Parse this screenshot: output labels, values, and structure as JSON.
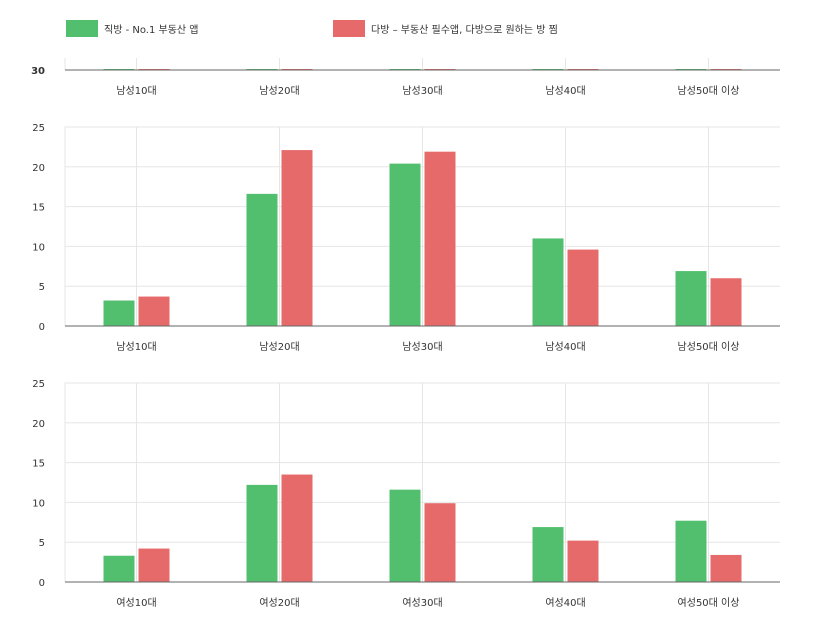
{
  "colors": {
    "series1": "#52bf6e",
    "series2": "#e66a6a",
    "grid": "#e6e6e6",
    "axis": "#666666",
    "text": "#333333"
  },
  "legend": [
    {
      "label": "직방 - No.1 부동산 앱"
    },
    {
      "label": "다방 – 부동산 필수앱, 다방으로 원하는 방 찜"
    }
  ],
  "chart_data": [
    {
      "type": "bar",
      "title": "",
      "categories": [
        "남성10대",
        "남성20대",
        "남성30대",
        "남성40대",
        "남성50대 이상"
      ],
      "yticks": [
        "30"
      ],
      "ylim": [
        30,
        40
      ],
      "series": [
        {
          "name": "직방 - No.1 부동산 앱",
          "values": [
            30,
            30.1,
            30.1,
            30,
            30
          ]
        },
        {
          "name": "다방 – 부동산 필수앱, 다방으로 원하는 방 찜",
          "values": [
            30,
            30.1,
            30.1,
            30,
            30
          ]
        }
      ]
    },
    {
      "type": "bar",
      "title": "",
      "categories": [
        "남성10대",
        "남성20대",
        "남성30대",
        "남성40대",
        "남성50대 이상"
      ],
      "yticks": [
        "0",
        "5",
        "10",
        "15",
        "20",
        "25"
      ],
      "ylim": [
        0,
        25
      ],
      "series": [
        {
          "name": "직방 - No.1 부동산 앱",
          "values": [
            3.2,
            16.6,
            20.4,
            11.0,
            6.9
          ]
        },
        {
          "name": "다방 – 부동산 필수앱, 다방으로 원하는 방 찜",
          "values": [
            3.7,
            22.1,
            21.9,
            9.6,
            6.0
          ]
        }
      ]
    },
    {
      "type": "bar",
      "title": "",
      "categories": [
        "여성10대",
        "여성20대",
        "여성30대",
        "여성40대",
        "여성50대 이상"
      ],
      "yticks": [
        "0",
        "5",
        "10",
        "15",
        "20",
        "25"
      ],
      "ylim": [
        0,
        25
      ],
      "series": [
        {
          "name": "직방 - No.1 부동산 앱",
          "values": [
            3.3,
            12.2,
            11.6,
            6.9,
            7.7
          ]
        },
        {
          "name": "다방 – 부동산 필수앱, 다방으로 원하는 방 찜",
          "values": [
            4.2,
            13.5,
            9.9,
            5.2,
            3.4
          ]
        }
      ]
    }
  ]
}
